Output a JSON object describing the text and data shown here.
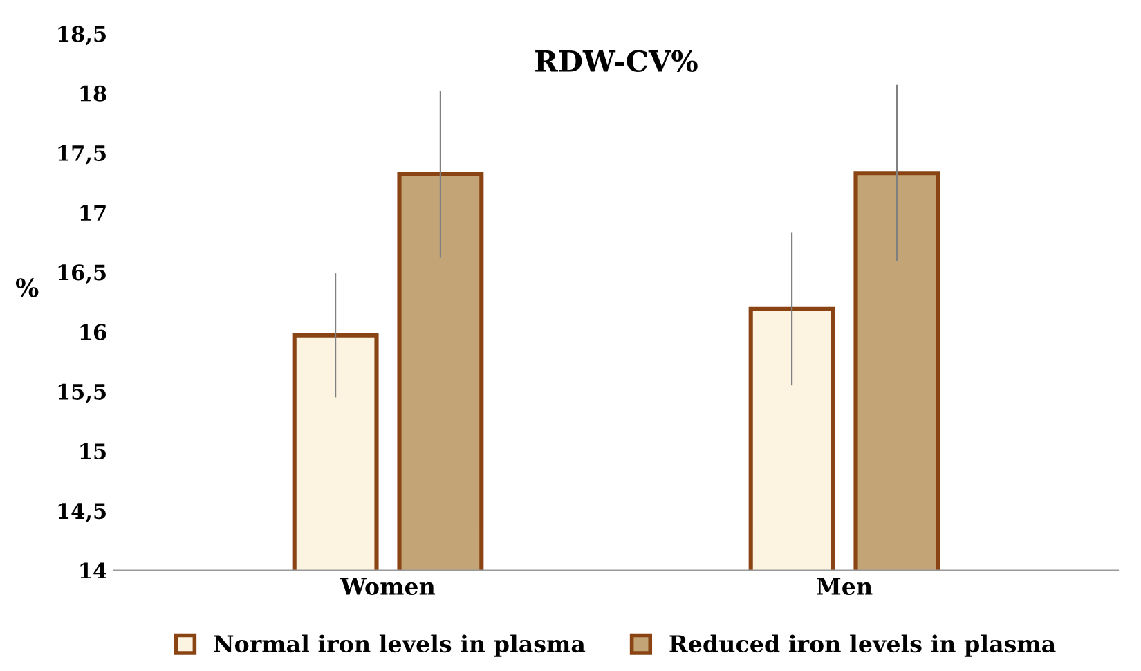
{
  "chart_data": {
    "type": "bar",
    "title": "RDW-CV%",
    "ylabel": "%",
    "categories": [
      "Women",
      "Men"
    ],
    "series": [
      {
        "name": "Normal iron levels in plasma",
        "color": "#fdf3e1",
        "values": [
          15.97,
          16.19
        ],
        "errors": [
          0.52,
          0.64
        ]
      },
      {
        "name": "Reduced iron levels in plasma",
        "color": "#c2a476",
        "values": [
          17.32,
          17.33
        ],
        "errors": [
          0.7,
          0.74
        ]
      }
    ],
    "ylim": [
      14,
      18.5
    ],
    "yticks": [
      14,
      {
        "value": 14.5,
        "label": "14,5"
      },
      15,
      {
        "value": 15.5,
        "label": "15,5"
      },
      16,
      {
        "value": 16.5,
        "label": "16,5"
      },
      17,
      {
        "value": 17.5,
        "label": "17,5"
      },
      18,
      {
        "value": 18.5,
        "label": "18,5"
      }
    ],
    "legend": "bottom",
    "grid": false
  }
}
